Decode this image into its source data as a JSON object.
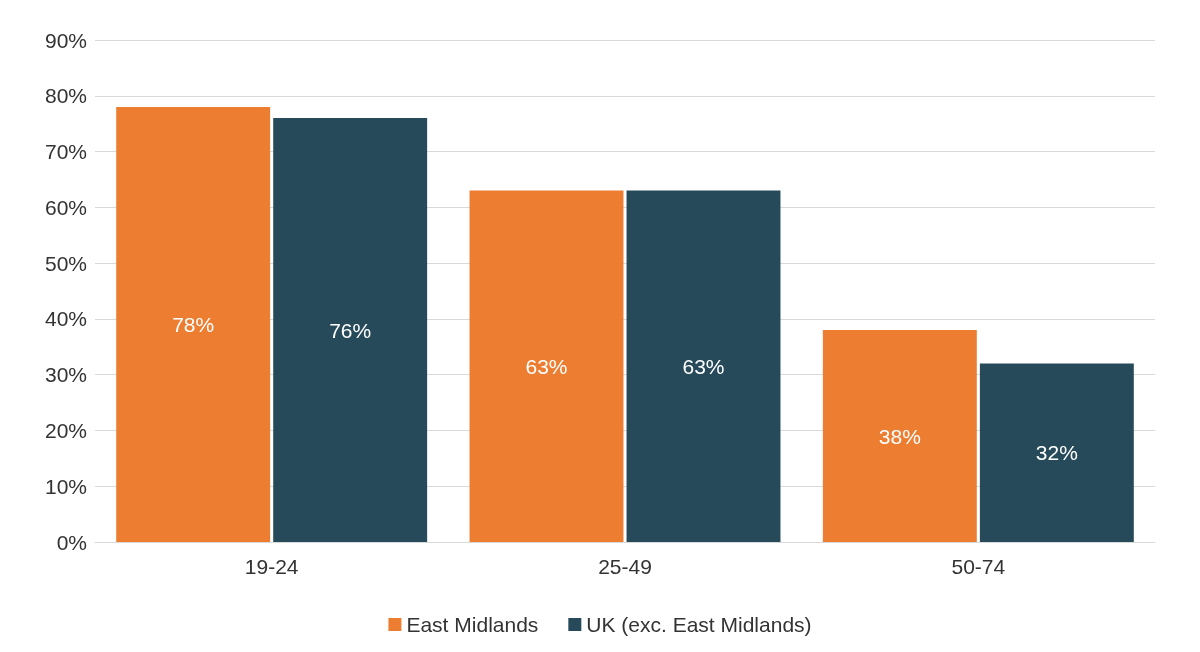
{
  "chart_data": {
    "type": "bar",
    "categories": [
      "19-24",
      "25-49",
      "50-74"
    ],
    "series": [
      {
        "name": "East Midlands",
        "color": "#ed7d31",
        "values": [
          78,
          63,
          38
        ],
        "value_labels": [
          "78%",
          "63%",
          "38%"
        ]
      },
      {
        "name": "UK (exc. East Midlands)",
        "color": "#264a5a",
        "values": [
          76,
          63,
          32
        ],
        "value_labels": [
          "76%",
          "63%",
          "32%"
        ]
      }
    ],
    "ylim": [
      0,
      90
    ],
    "yticks": [
      {
        "value": 0,
        "label": "0%"
      },
      {
        "value": 10,
        "label": "10%"
      },
      {
        "value": 20,
        "label": "20%"
      },
      {
        "value": 30,
        "label": "30%"
      },
      {
        "value": 40,
        "label": "40%"
      },
      {
        "value": 50,
        "label": "50%"
      },
      {
        "value": 60,
        "label": "60%"
      },
      {
        "value": 70,
        "label": "70%"
      },
      {
        "value": 80,
        "label": "80%"
      },
      {
        "value": 90,
        "label": "90%"
      }
    ],
    "grid": "y",
    "legend": "bottom"
  }
}
